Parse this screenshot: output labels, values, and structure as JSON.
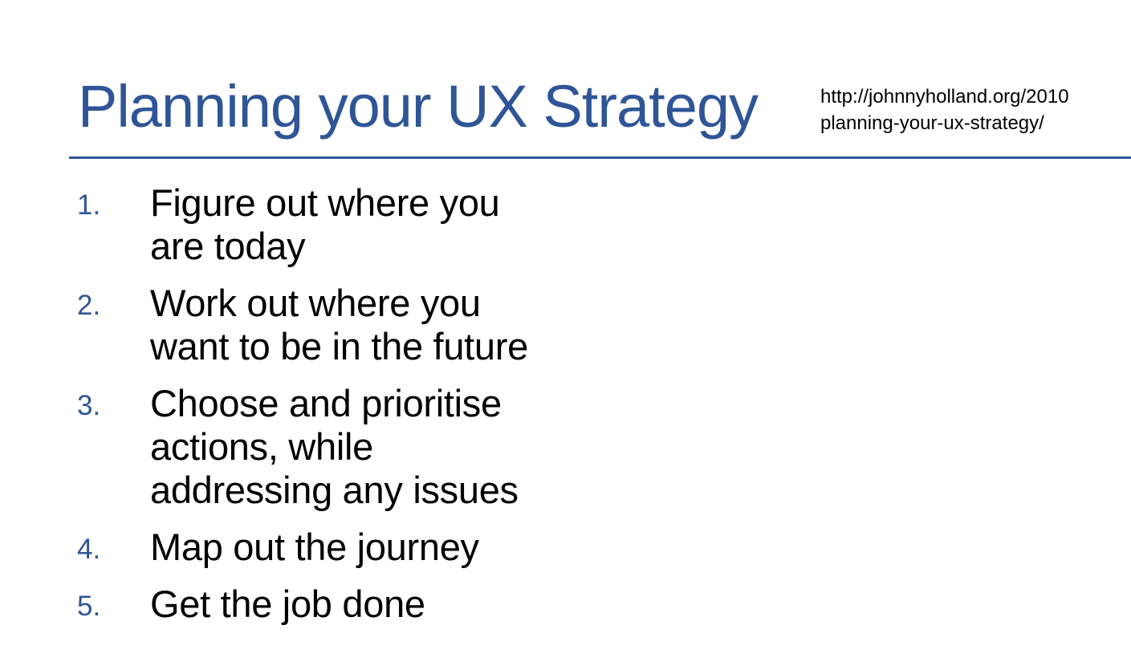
{
  "slide": {
    "title": "Planning your UX Strategy",
    "source_link": {
      "line1": "http://johnnyholland.org/2010",
      "line2": "planning-your-ux-strategy/"
    },
    "colors": {
      "title": "#2f5597",
      "rule": "#2f5597",
      "numbers": "#2f5597",
      "body_text": "#000000"
    },
    "steps": [
      {
        "number": "1.",
        "text": "Figure out where you\nare today"
      },
      {
        "number": "2.",
        "text": "Work out where you\nwant to be in the future"
      },
      {
        "number": "3.",
        "text": "Choose and prioritise\nactions, while\naddressing any issues"
      },
      {
        "number": "4.",
        "text": "Map out the journey"
      },
      {
        "number": "5.",
        "text": "Get the job done"
      }
    ]
  }
}
